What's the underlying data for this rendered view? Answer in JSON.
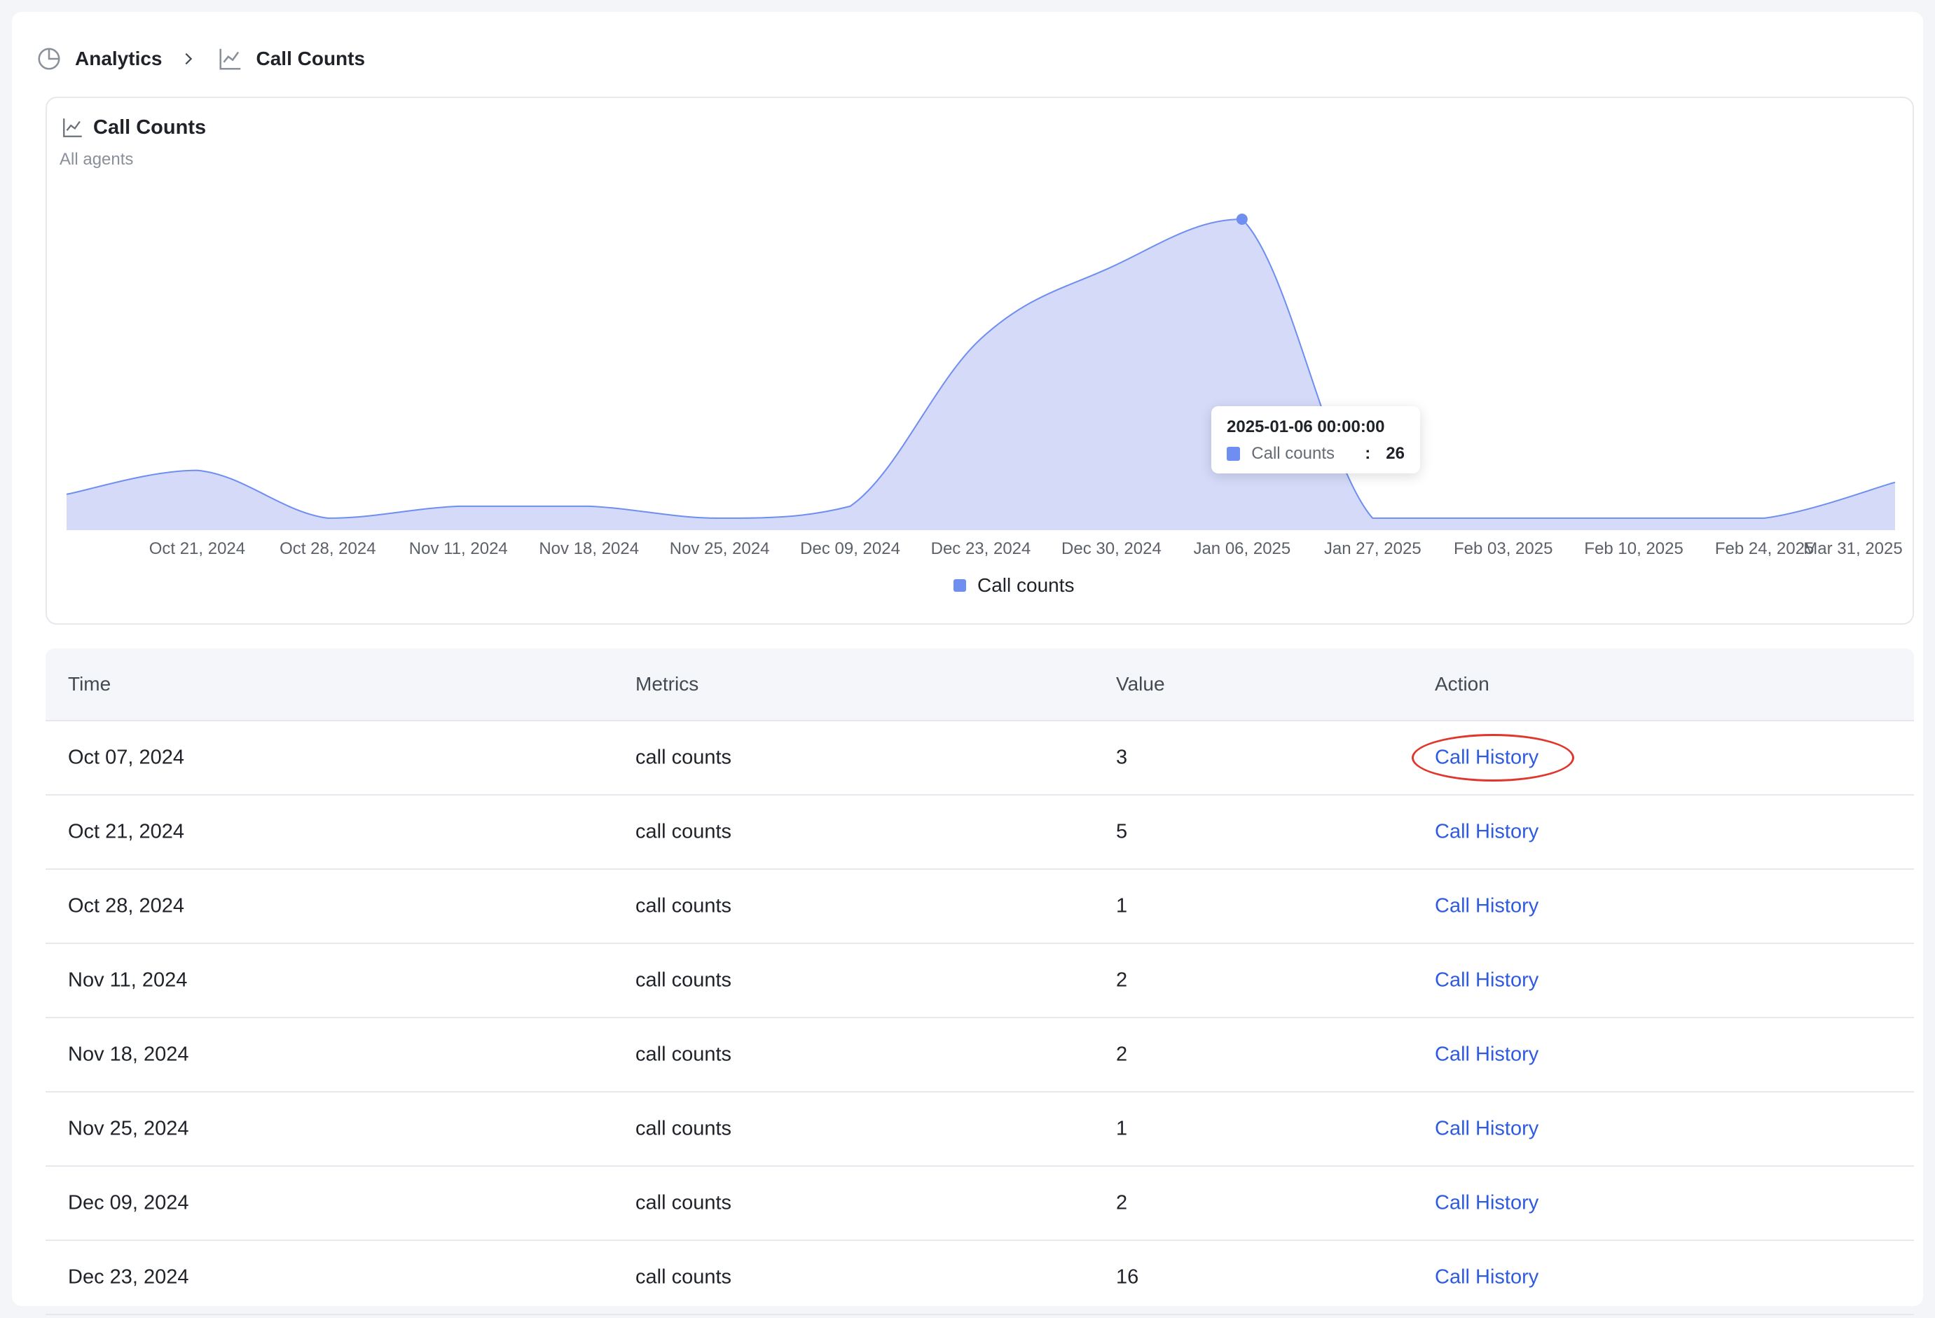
{
  "breadcrumb": {
    "items": [
      {
        "label": "Analytics",
        "icon": "pie-chart-icon"
      },
      {
        "label": "Call Counts",
        "icon": "line-chart-icon"
      }
    ]
  },
  "card": {
    "title": "Call Counts",
    "subtitle": "All agents"
  },
  "tooltip": {
    "title": "2025-01-06 00:00:00",
    "series": "Call counts",
    "separator": ":",
    "value": "26"
  },
  "legend": {
    "label": "Call counts",
    "color": "#6e8ef0"
  },
  "chart_data": {
    "type": "area",
    "x": [
      "Oct 07, 2024",
      "Oct 21, 2024",
      "Oct 28, 2024",
      "Nov 11, 2024",
      "Nov 18, 2024",
      "Nov 25, 2024",
      "Dec 09, 2024",
      "Dec 23, 2024",
      "Dec 30, 2024",
      "Jan 06, 2025",
      "Jan 27, 2025",
      "Feb 03, 2025",
      "Feb 10, 2025",
      "Feb 24, 2025",
      "Mar 31, 2025"
    ],
    "x_tick_labels": [
      "Oct 21, 2024",
      "Oct 28, 2024",
      "Nov 11, 2024",
      "Nov 18, 2024",
      "Nov 25, 2024",
      "Dec 09, 2024",
      "Dec 23, 2024",
      "Dec 30, 2024",
      "Jan 06, 2025",
      "Jan 27, 2025",
      "Feb 03, 2025",
      "Feb 10, 2025",
      "Feb 24, 2025",
      "Mar 31, 2025"
    ],
    "series": [
      {
        "name": "Call counts",
        "values": [
          3,
          5,
          1,
          2,
          2,
          1,
          2,
          16,
          22,
          26,
          1,
          1,
          1,
          1,
          4
        ]
      }
    ],
    "ylim": [
      0,
      26
    ],
    "highlight_index": 9,
    "fill_color": "#d4daf8",
    "line_color": "#6e8ef0"
  },
  "table": {
    "headers": [
      "Time",
      "Metrics",
      "Value",
      "Action"
    ],
    "rows": [
      {
        "time": "Oct 07, 2024",
        "metric": "call counts",
        "value": "3",
        "action": "Call History"
      },
      {
        "time": "Oct 21, 2024",
        "metric": "call counts",
        "value": "5",
        "action": "Call History"
      },
      {
        "time": "Oct 28, 2024",
        "metric": "call counts",
        "value": "1",
        "action": "Call History"
      },
      {
        "time": "Nov 11, 2024",
        "metric": "call counts",
        "value": "2",
        "action": "Call History"
      },
      {
        "time": "Nov 18, 2024",
        "metric": "call counts",
        "value": "2",
        "action": "Call History"
      },
      {
        "time": "Nov 25, 2024",
        "metric": "call counts",
        "value": "1",
        "action": "Call History"
      },
      {
        "time": "Dec 09, 2024",
        "metric": "call counts",
        "value": "2",
        "action": "Call History"
      },
      {
        "time": "Dec 23, 2024",
        "metric": "call counts",
        "value": "16",
        "action": "Call History"
      }
    ],
    "link_color": "#2f5be0",
    "highlight_color": "#e0362c"
  }
}
